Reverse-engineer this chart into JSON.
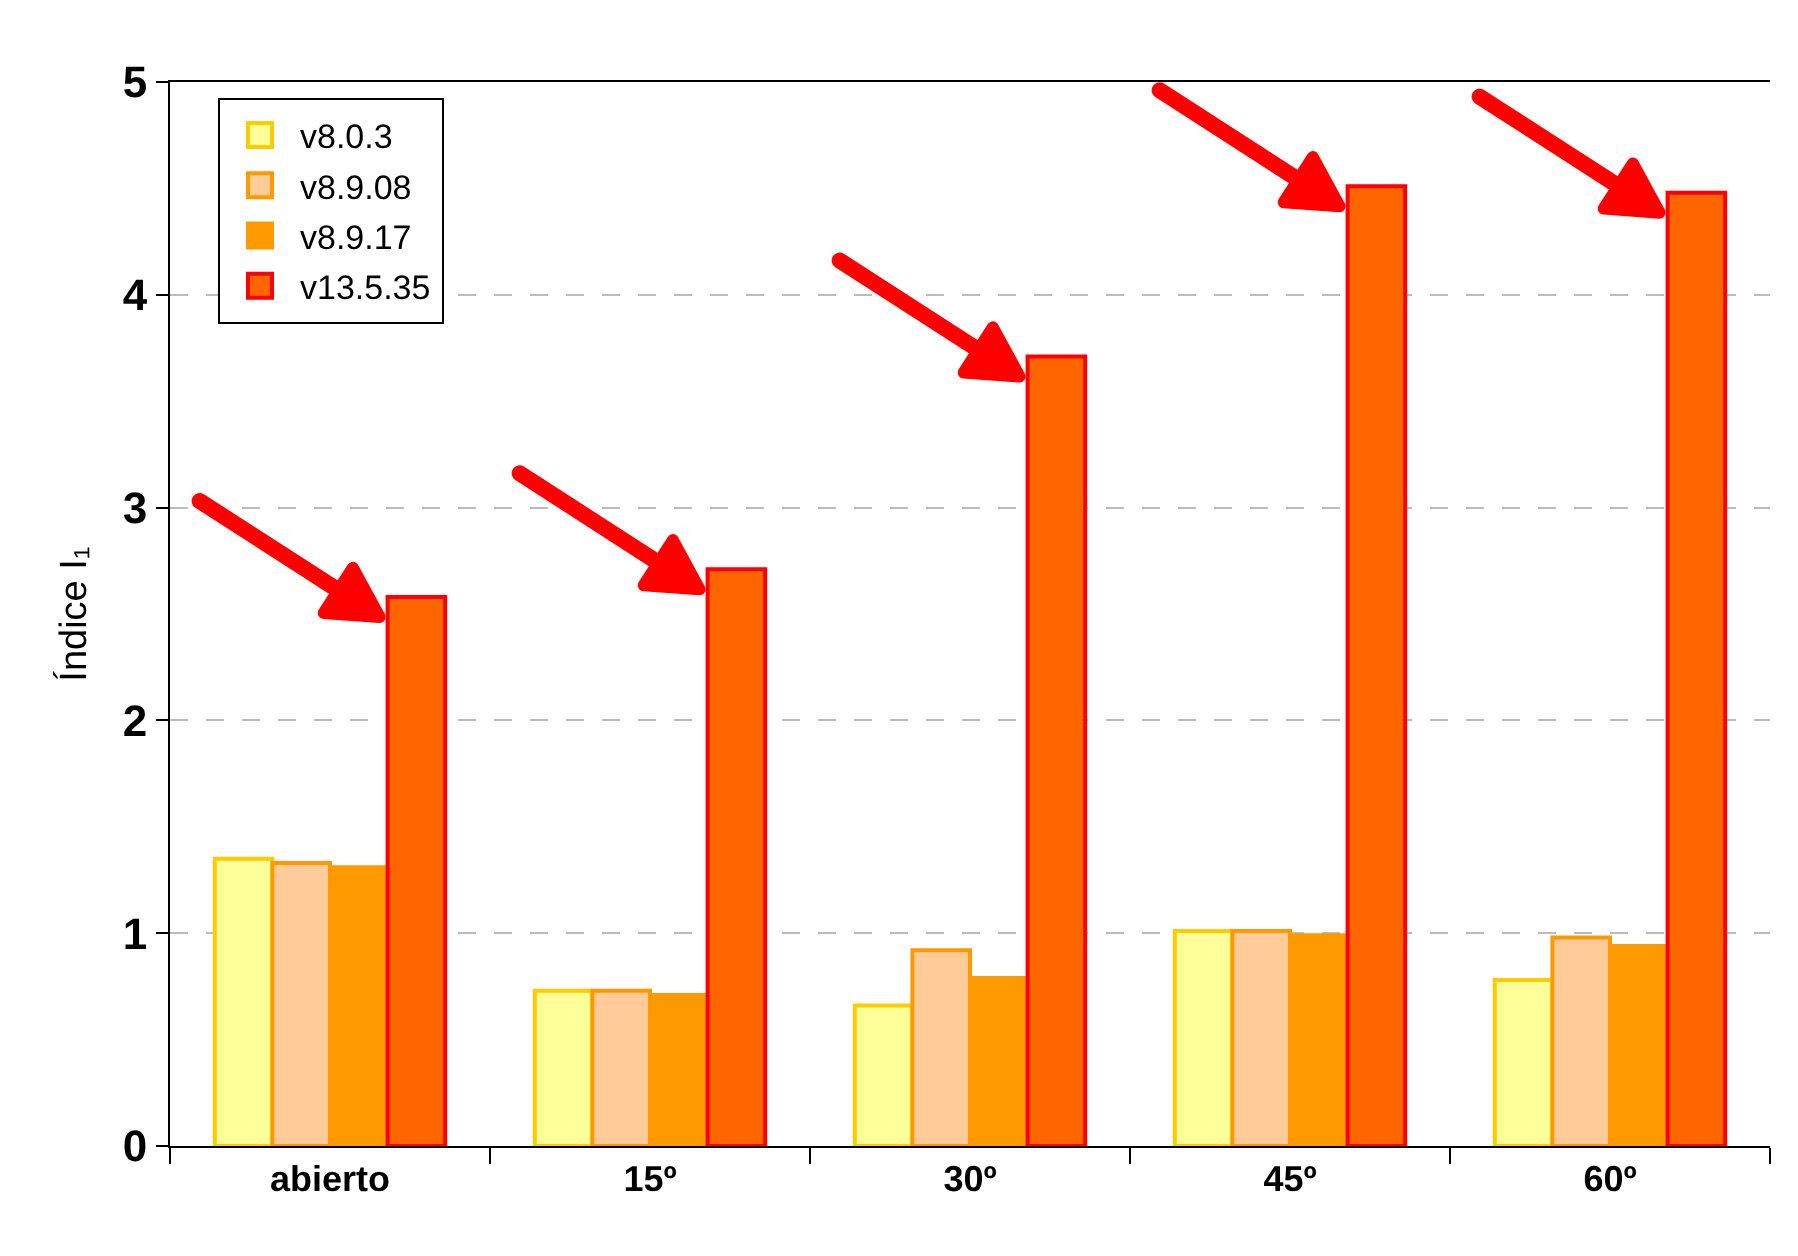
{
  "chart_data": {
    "type": "bar",
    "ylabel": "Índice I₁",
    "categories": [
      "abierto",
      "15º",
      "30º",
      "45º",
      "60º"
    ],
    "series": [
      {
        "name": "v8.0.3",
        "color": "#ffff99",
        "values": [
          1.35,
          0.73,
          0.66,
          1.01,
          0.78
        ]
      },
      {
        "name": "v8.9.08",
        "color": "#ffcc99",
        "values": [
          1.33,
          0.73,
          0.92,
          1.01,
          0.98
        ]
      },
      {
        "name": "v8.9.17",
        "color": "#ff9900",
        "values": [
          1.31,
          0.71,
          0.79,
          0.99,
          0.94
        ]
      },
      {
        "name": "v13.5.35",
        "color": "#ff6600",
        "values": [
          2.58,
          2.71,
          3.71,
          4.51,
          4.48
        ]
      }
    ],
    "ylim": [
      0,
      5
    ],
    "yticks": [
      0,
      1,
      2,
      3,
      4,
      5
    ],
    "grid": "y",
    "legend": "top left"
  }
}
